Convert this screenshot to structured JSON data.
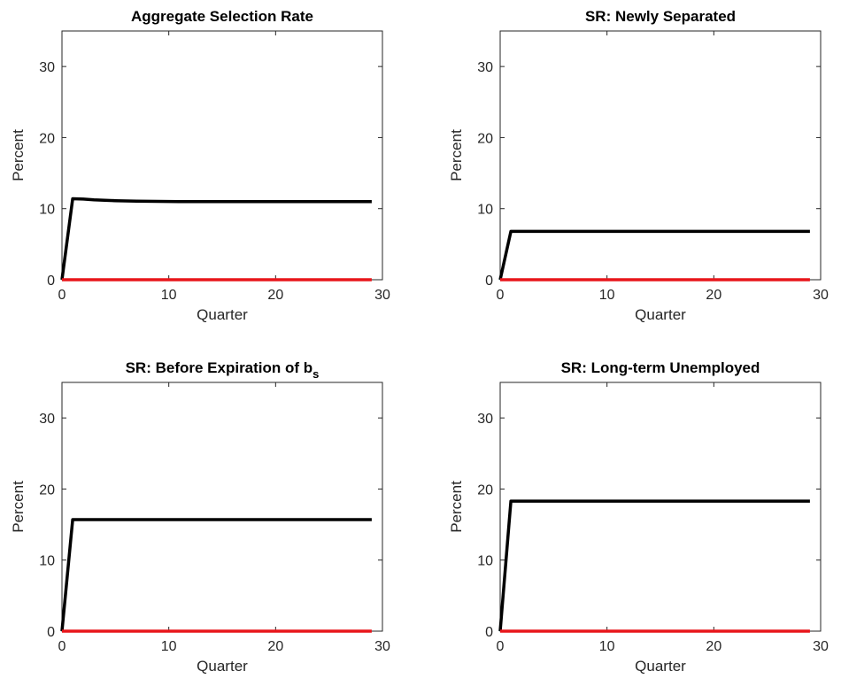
{
  "chart_data": [
    {
      "type": "line",
      "title": "Aggregate Selection Rate",
      "xlabel": "Quarter",
      "ylabel": "Percent",
      "xlim": [
        0,
        30
      ],
      "ylim": [
        0,
        35
      ],
      "xticks": [
        "0",
        "10",
        "20",
        "30"
      ],
      "yticks": [
        "0",
        "10",
        "20",
        "30"
      ],
      "grid": false,
      "series": [
        {
          "color": "#000000",
          "x": [
            0,
            1,
            2,
            3,
            4,
            5,
            6,
            7,
            8,
            9,
            10,
            11,
            12,
            13,
            14,
            15,
            16,
            17,
            18,
            19,
            20,
            21,
            22,
            23,
            24,
            25,
            26,
            27,
            28,
            29
          ],
          "y": [
            0,
            11.4,
            11.35,
            11.25,
            11.18,
            11.12,
            11.08,
            11.05,
            11.03,
            11.02,
            11.01,
            11.0,
            11.0,
            11.0,
            11.0,
            11.0,
            11.0,
            11.0,
            11.0,
            11.0,
            11.0,
            11.0,
            11.0,
            11.0,
            11.0,
            11.0,
            11.0,
            11.0,
            11.0,
            11.0
          ]
        },
        {
          "color": "#e8161b",
          "x": [
            0,
            29
          ],
          "y": [
            0,
            0
          ]
        }
      ]
    },
    {
      "type": "line",
      "title": "SR: Newly Separated",
      "xlabel": "Quarter",
      "ylabel": "Percent",
      "xlim": [
        0,
        30
      ],
      "ylim": [
        0,
        35
      ],
      "xticks": [
        "0",
        "10",
        "20",
        "30"
      ],
      "yticks": [
        "0",
        "10",
        "20",
        "30"
      ],
      "grid": false,
      "series": [
        {
          "color": "#000000",
          "x": [
            0,
            1,
            29
          ],
          "y": [
            0,
            6.8,
            6.8
          ]
        },
        {
          "color": "#e8161b",
          "x": [
            0,
            29
          ],
          "y": [
            0,
            0
          ]
        }
      ]
    },
    {
      "type": "line",
      "title": "SR: Before Expiration of b",
      "title_subscript": "s",
      "xlabel": "Quarter",
      "ylabel": "Percent",
      "xlim": [
        0,
        30
      ],
      "ylim": [
        0,
        35
      ],
      "xticks": [
        "0",
        "10",
        "20",
        "30"
      ],
      "yticks": [
        "0",
        "10",
        "20",
        "30"
      ],
      "grid": false,
      "series": [
        {
          "color": "#000000",
          "x": [
            0,
            1,
            29
          ],
          "y": [
            0,
            15.7,
            15.7
          ]
        },
        {
          "color": "#e8161b",
          "x": [
            0,
            29
          ],
          "y": [
            0,
            0
          ]
        }
      ]
    },
    {
      "type": "line",
      "title": "SR: Long-term Unemployed",
      "xlabel": "Quarter",
      "ylabel": "Percent",
      "xlim": [
        0,
        30
      ],
      "ylim": [
        0,
        35
      ],
      "xticks": [
        "0",
        "10",
        "20",
        "30"
      ],
      "yticks": [
        "0",
        "10",
        "20",
        "30"
      ],
      "grid": false,
      "series": [
        {
          "color": "#000000",
          "x": [
            0,
            1,
            29
          ],
          "y": [
            0,
            18.3,
            18.3
          ]
        },
        {
          "color": "#e8161b",
          "x": [
            0,
            29
          ],
          "y": [
            0,
            0
          ]
        }
      ]
    }
  ]
}
